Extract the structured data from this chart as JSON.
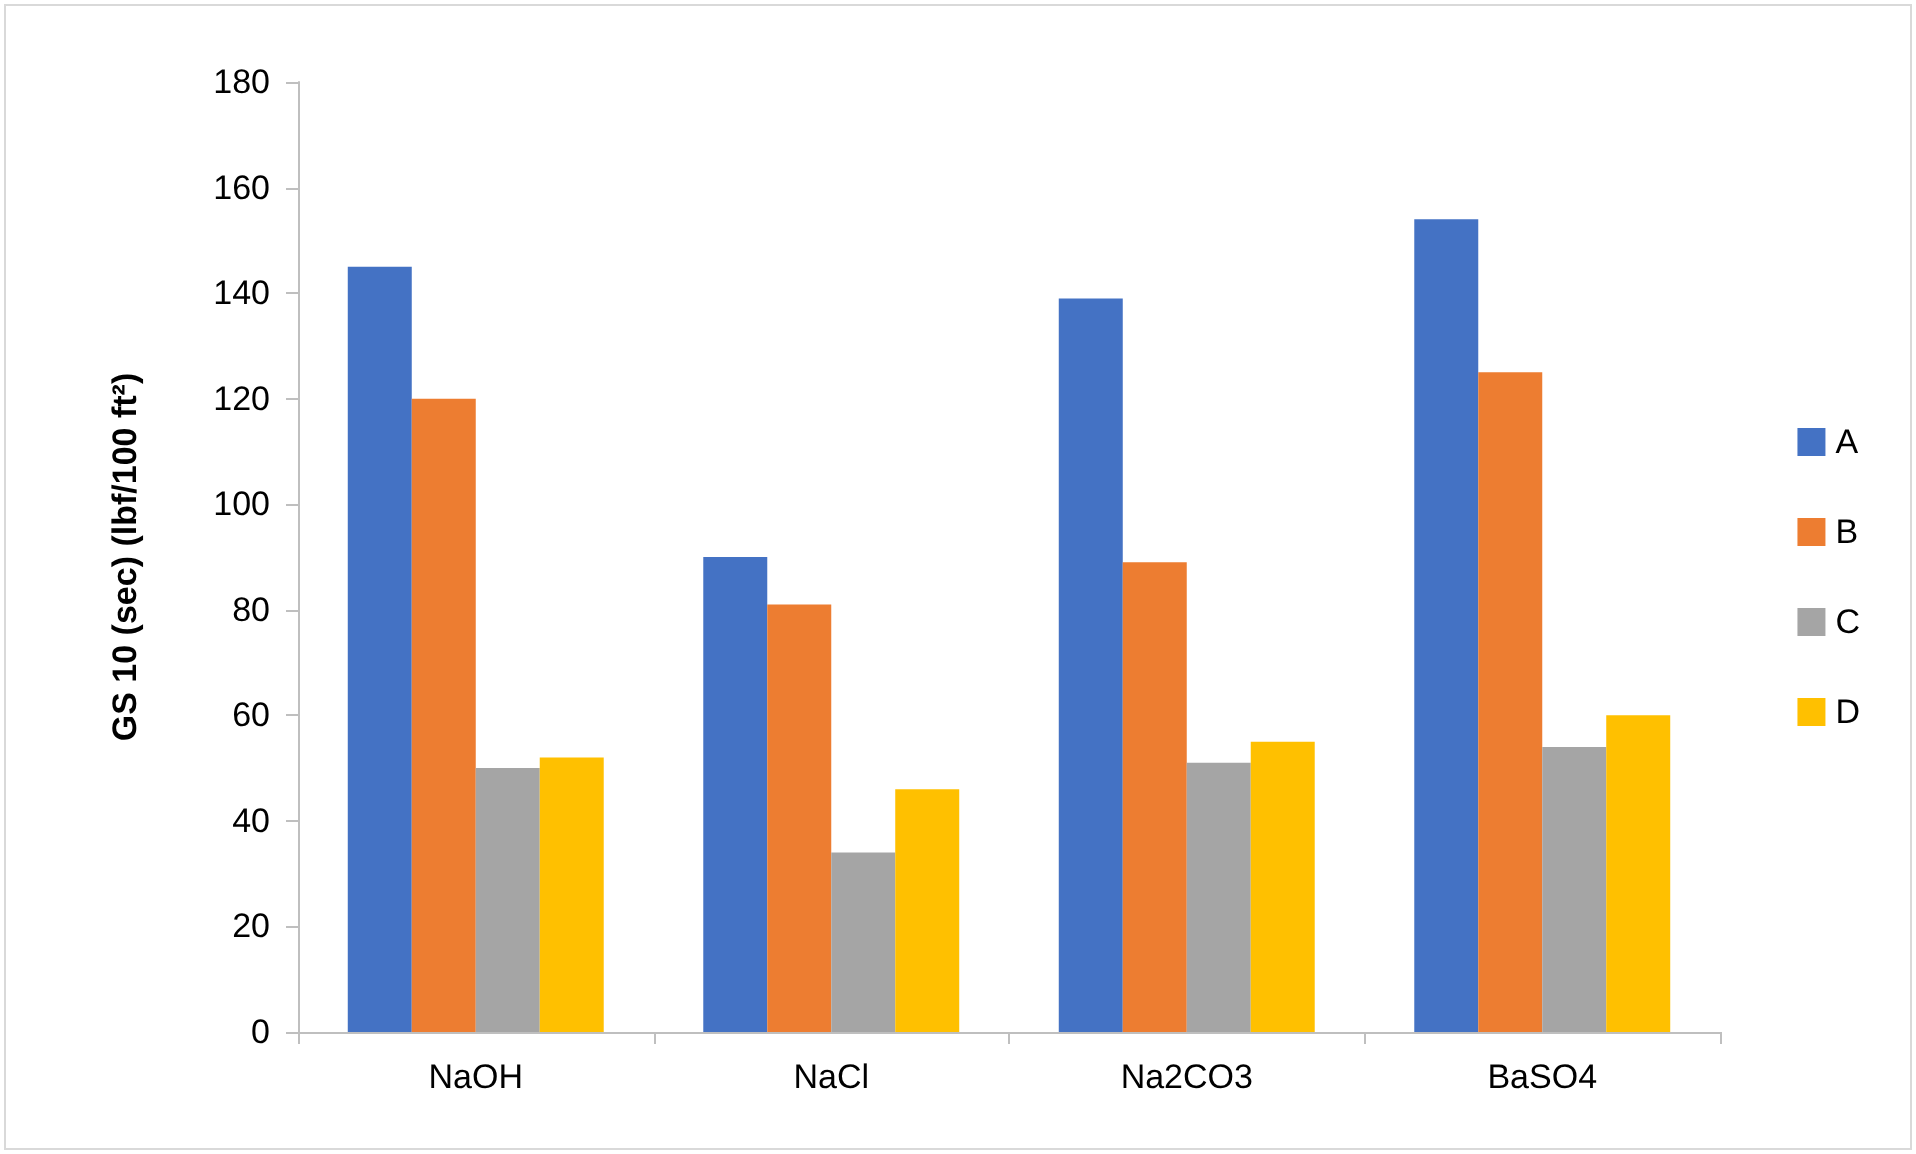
{
  "chart_data": {
    "type": "bar",
    "ylabel": "GS 10 (sec) (lbf/100 ft²)",
    "categories": [
      "NaOH",
      "NaCl",
      "Na2CO3",
      "BaSO4"
    ],
    "series": [
      {
        "name": "A",
        "color": "#4472c4",
        "values": [
          145,
          90,
          139,
          154
        ]
      },
      {
        "name": "B",
        "color": "#ed7d31",
        "values": [
          120,
          81,
          89,
          125
        ]
      },
      {
        "name": "C",
        "color": "#a5a5a5",
        "values": [
          50,
          34,
          51,
          54
        ]
      },
      {
        "name": "D",
        "color": "#ffc000",
        "values": [
          52,
          46,
          55,
          60
        ]
      }
    ],
    "ylim": [
      0,
      180
    ],
    "yticks": [
      0,
      20,
      40,
      60,
      80,
      100,
      120,
      140,
      160,
      180
    ],
    "grid": false,
    "legend": "right"
  }
}
